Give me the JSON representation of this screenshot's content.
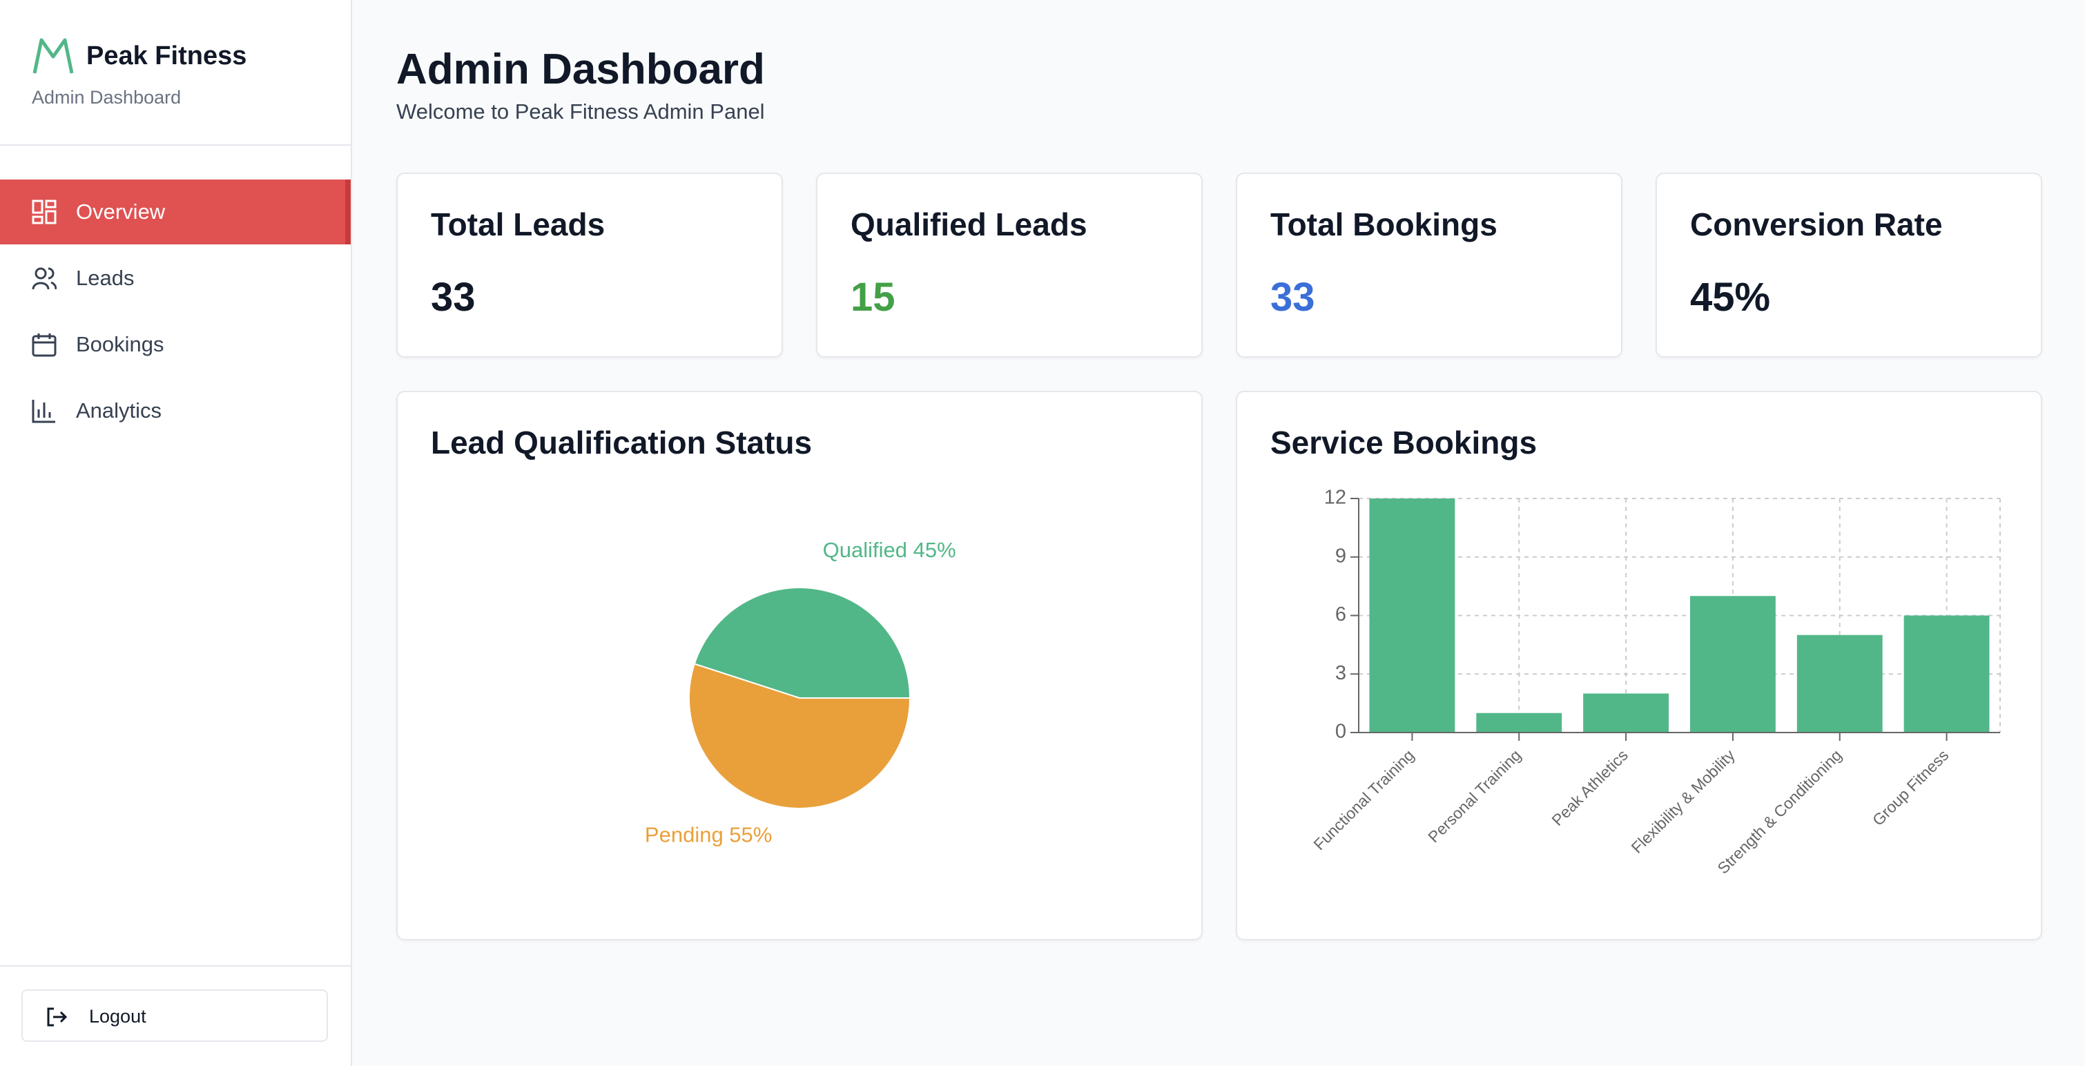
{
  "sidebar": {
    "brand": "Peak Fitness",
    "subtitle": "Admin Dashboard",
    "nav": [
      "Overview",
      "Leads",
      "Bookings",
      "Analytics"
    ],
    "logout": "Logout"
  },
  "header": {
    "title": "Admin Dashboard",
    "subtitle": "Welcome to Peak Fitness Admin Panel"
  },
  "stats": [
    {
      "label": "Total Leads",
      "value": 33
    },
    {
      "label": "Qualified Leads",
      "value": 15
    },
    {
      "label": "Total Bookings",
      "value": 33
    },
    {
      "label": "Conversion Rate",
      "value": "45%"
    }
  ],
  "charts": [
    {
      "type": "pie",
      "title": "Lead Qualification Status",
      "values": [
        45,
        55
      ],
      "value_labels": [
        "Qualified 45%",
        "Pending 55%"
      ],
      "colors": [
        "#52b788",
        "#e9a03b"
      ]
    },
    {
      "type": "bar",
      "title": "Service Bookings",
      "categories": [
        "Functional Training",
        "Personal Training",
        "Peak Athletics",
        "Flexibility & Mobility",
        "Strength & Conditioning",
        "Group Fitness"
      ],
      "values": [
        12,
        1,
        2,
        7,
        5,
        6
      ],
      "color": "#52b788",
      "ylim": [
        0,
        12
      ],
      "yticks": [
        0,
        3,
        6,
        9,
        12
      ],
      "grid": true
    }
  ]
}
